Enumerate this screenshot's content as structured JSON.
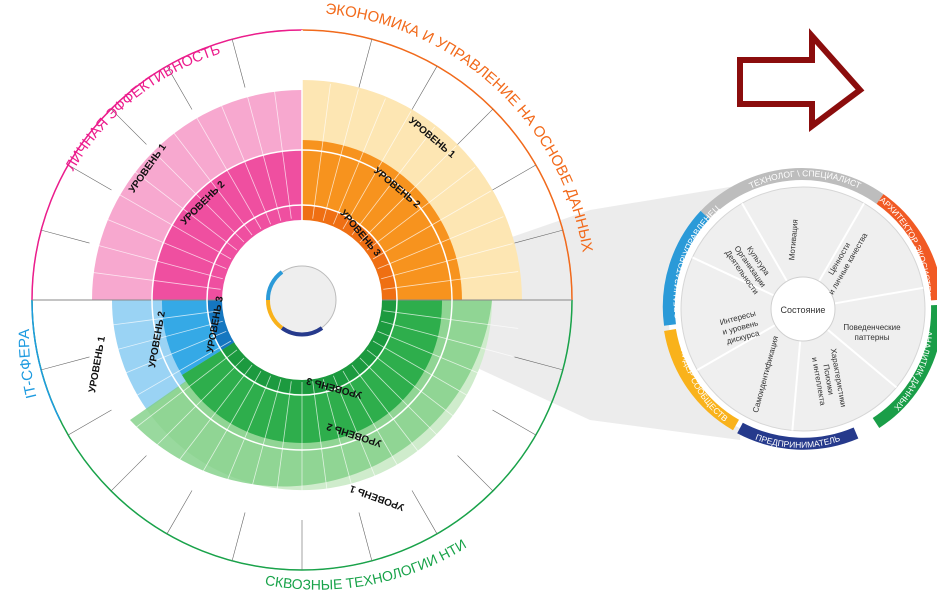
{
  "wheel": {
    "sectors": {
      "personal": {
        "title": "ЛИЧНАЯ ЭФФЕКТИВНОСТЬ",
        "level1": "УРОВЕНЬ 1",
        "level2": "УРОВЕНЬ 2",
        "color": "#ec1c8c"
      },
      "economy": {
        "title": "ЭКОНОМИКА И УПРАВЛЕНИЕ НА ОСНОВЕ ДАННЫХ",
        "level1": "УРОВЕНЬ 1",
        "level2": "УРОВЕНЬ 2",
        "level3": "УРОВЕНЬ 3",
        "color": "#f26a1b"
      },
      "it": {
        "title": "IT-СФЕРА",
        "level1": "УРОВЕНЬ 1",
        "level2": "УРОВЕНЬ 2",
        "level3": "УРОВЕНЬ 3",
        "color": "#1e9be0"
      },
      "nti": {
        "title": "СКВОЗНЫЕ ТЕХНОЛОГИИ НТИ",
        "level1": "УРОВЕНЬ 1",
        "level2": "УРОВЕНЬ 2",
        "level3": "УРОВЕНЬ 3",
        "color": "#19a34a"
      }
    }
  },
  "detail": {
    "center": "Состояние",
    "roles": {
      "technologist": {
        "label": "ТЕХНОЛОГ \\ СПЕЦИАЛИСТ",
        "color": "#bdbdbd"
      },
      "architect": {
        "label": "АРХИТЕКТОР ЭКОСИСТЕМ",
        "color": "#f15a24"
      },
      "analyst": {
        "label": "АНАЛИТИК ДАННЫХ",
        "color": "#1a9e48"
      },
      "entrepreneur": {
        "label": "ПРЕДПРИНИМАТЕЛЬ",
        "color": "#263a8c"
      },
      "leader": {
        "label": "ЛИДЕР СООБЩЕСТВ",
        "color": "#f9b21b"
      },
      "organizer": {
        "label": "ОРГАНИЗАТОР\\УПРАВЛЕНЕЦ",
        "color": "#2b9ad8"
      }
    },
    "segments": {
      "motivation": "Мотивация",
      "values": [
        "Ценности",
        "и личные качества"
      ],
      "patterns": [
        "Поведенческие",
        "паттерны"
      ],
      "characteristics": [
        "Характеристики",
        "Психики",
        "и интеллекта"
      ],
      "self_identification": "Самоидентификация",
      "interests": [
        "Интересы",
        "и уровень",
        "дискурса"
      ],
      "culture": [
        "Культура",
        "Организации",
        "Деятельности"
      ]
    }
  },
  "arrow": {
    "color": "#8b0d0d"
  }
}
